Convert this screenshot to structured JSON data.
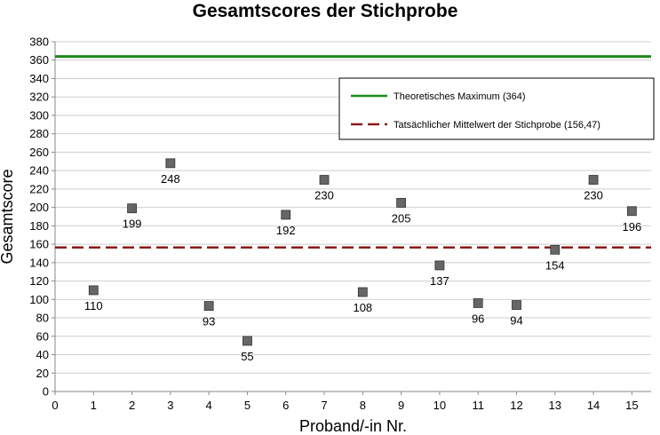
{
  "chart_data": {
    "type": "scatter",
    "title": "Gesamtscores der Stichprobe",
    "xlabel": "Proband/-in Nr.",
    "ylabel": "Gesamtscore",
    "xlim": [
      0,
      15.5
    ],
    "ylim": [
      0,
      380
    ],
    "x_ticks": [
      0,
      1,
      2,
      3,
      4,
      5,
      6,
      7,
      8,
      9,
      10,
      11,
      12,
      13,
      14,
      15
    ],
    "y_ticks": [
      0,
      20,
      40,
      60,
      80,
      100,
      120,
      140,
      160,
      180,
      200,
      220,
      240,
      260,
      280,
      300,
      320,
      340,
      360,
      380
    ],
    "grid": "horizontal",
    "legend_position": "top-right",
    "series": [
      {
        "type": "scatter",
        "marker": "square",
        "color": "#666666",
        "points": [
          {
            "x": 1,
            "y": 110,
            "label": "110",
            "label_side": "below"
          },
          {
            "x": 2,
            "y": 199,
            "label": "199",
            "label_side": "below"
          },
          {
            "x": 3,
            "y": 248,
            "label": "248",
            "label_side": "below"
          },
          {
            "x": 4,
            "y": 93,
            "label": "93",
            "label_side": "below"
          },
          {
            "x": 5,
            "y": 55,
            "label": "55",
            "label_side": "below"
          },
          {
            "x": 6,
            "y": 192,
            "label": "192",
            "label_side": "below"
          },
          {
            "x": 7,
            "y": 230,
            "label": "230",
            "label_side": "below"
          },
          {
            "x": 8,
            "y": 108,
            "label": "108",
            "label_side": "below"
          },
          {
            "x": 9,
            "y": 205,
            "label": "205",
            "label_side": "below"
          },
          {
            "x": 10,
            "y": 137,
            "label": "137",
            "label_side": "below"
          },
          {
            "x": 11,
            "y": 96,
            "label": "96",
            "label_side": "below"
          },
          {
            "x": 12,
            "y": 94,
            "label": "94",
            "label_side": "below"
          },
          {
            "x": 13,
            "y": 154,
            "label": "154",
            "label_side": "below"
          },
          {
            "x": 14,
            "y": 230,
            "label": "230",
            "label_side": "below"
          },
          {
            "x": 15,
            "y": 196,
            "label": "196",
            "label_side": "below"
          }
        ]
      }
    ],
    "reference_lines": [
      {
        "name": "Theoretisches Maximum (364)",
        "y": 364,
        "color": "#1a8a1a",
        "style": "solid"
      },
      {
        "name": "Tatsächlicher Mittelwert der Stichprobe (156,47)",
        "y": 156.47,
        "color": "#8b1a1a",
        "style": "dashed"
      }
    ]
  }
}
